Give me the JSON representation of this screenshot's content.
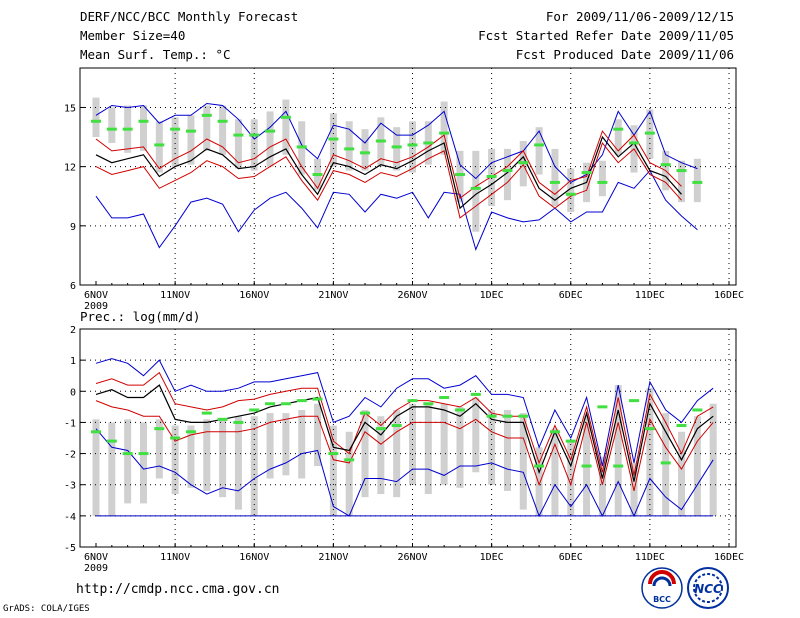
{
  "header": {
    "title": "DERF/NCC/BCC Monthly Forecast",
    "member_size": "Member Size=40",
    "period": "For 2009/11/06-2009/12/15",
    "started": "Fcst Started Refer Date 2009/11/05",
    "produced": "Fcst Produced Date 2009/11/06"
  },
  "footer": {
    "url": "http://cmdp.ncc.cma.gov.cn",
    "grads": "GrADS: COLA/IGES"
  },
  "logos": {
    "bcc": "BCC",
    "ncc": "NCC"
  },
  "colors": {
    "max_min": "#0000d0",
    "quartile": "#d00000",
    "median": "#000000",
    "box": "#d0d0d0",
    "observed": "#40e040",
    "grid": "#000000"
  },
  "chart_data": [
    {
      "type": "line",
      "title": "Mean Surf. Temp.: °C",
      "ylim": [
        6,
        17
      ],
      "yticks": [
        6,
        9,
        12,
        15
      ],
      "xticks": [
        {
          "day": 0,
          "label": "6NOV"
        },
        {
          "day": 5,
          "label": "11NOV"
        },
        {
          "day": 10,
          "label": "16NOV"
        },
        {
          "day": 15,
          "label": "21NOV"
        },
        {
          "day": 20,
          "label": "26NOV"
        },
        {
          "day": 25,
          "label": "1DEC"
        },
        {
          "day": 30,
          "label": "6DEC"
        },
        {
          "day": 35,
          "label": "11DEC"
        },
        {
          "day": 40,
          "label": "16DEC"
        }
      ],
      "year_label": "2009",
      "series": [
        {
          "name": "max",
          "values": [
            14.6,
            15.1,
            15.0,
            15.1,
            14.2,
            14.6,
            14.6,
            15.2,
            15.1,
            14.4,
            13.4,
            14.0,
            14.8,
            13.1,
            12.4,
            14.1,
            13.9,
            13.2,
            14.2,
            13.6,
            13.6,
            14.1,
            14.8,
            12.1,
            11.4,
            12.2,
            12.5,
            12.8,
            13.8,
            12.0,
            11.2,
            11.6,
            12.6,
            14.8,
            13.6,
            14.8,
            12.6,
            12.2,
            11.9
          ]
        },
        {
          "name": "upper_quartile",
          "values": [
            13.4,
            12.8,
            12.9,
            13.0,
            11.9,
            12.4,
            12.8,
            13.4,
            13.0,
            12.2,
            12.4,
            13.0,
            13.4,
            12.0,
            10.9,
            12.6,
            12.3,
            11.9,
            12.4,
            12.2,
            12.5,
            13.0,
            13.6,
            10.4,
            11.0,
            11.5,
            12.0,
            12.8,
            11.2,
            10.6,
            11.3,
            11.5,
            13.8,
            12.8,
            13.6,
            12.2,
            11.8,
            11.0
          ]
        },
        {
          "name": "median",
          "values": [
            12.6,
            12.2,
            12.4,
            12.6,
            11.5,
            12.0,
            12.3,
            12.9,
            12.6,
            11.9,
            12.0,
            12.5,
            12.9,
            11.6,
            10.6,
            12.2,
            12.0,
            11.6,
            12.1,
            11.9,
            12.3,
            12.8,
            13.2,
            9.9,
            10.6,
            11.1,
            11.7,
            12.5,
            10.9,
            10.3,
            10.9,
            11.2,
            13.5,
            12.5,
            13.2,
            11.8,
            11.5,
            10.6
          ]
        },
        {
          "name": "lower_quartile",
          "values": [
            12.0,
            11.6,
            11.8,
            12.0,
            10.9,
            11.3,
            11.7,
            12.3,
            12.0,
            11.4,
            11.5,
            12.0,
            12.5,
            11.3,
            10.3,
            11.8,
            11.6,
            11.2,
            11.7,
            11.5,
            11.9,
            12.4,
            12.8,
            9.4,
            10.0,
            10.6,
            11.2,
            12.1,
            10.5,
            9.9,
            10.5,
            10.8,
            13.2,
            12.2,
            12.9,
            11.6,
            11.2,
            10.3
          ]
        },
        {
          "name": "min",
          "values": [
            10.5,
            9.4,
            9.4,
            9.6,
            7.9,
            9.0,
            10.2,
            10.4,
            10.1,
            8.7,
            9.8,
            10.4,
            10.7,
            9.9,
            8.9,
            10.7,
            10.6,
            9.7,
            10.6,
            10.4,
            10.7,
            9.4,
            10.7,
            10.6,
            7.8,
            9.7,
            9.4,
            9.2,
            9.3,
            9.9,
            9.2,
            9.7,
            9.7,
            11.2,
            10.9,
            11.8,
            10.3,
            9.5,
            8.8
          ]
        },
        {
          "name": "observed",
          "values": [
            14.3,
            13.9,
            13.9,
            14.3,
            13.1,
            13.9,
            13.8,
            14.6,
            14.3,
            13.6,
            13.6,
            13.8,
            14.5,
            13.0,
            11.6,
            13.4,
            12.9,
            12.7,
            13.3,
            13.0,
            13.1,
            13.2,
            13.7,
            11.6,
            10.9,
            11.5,
            11.8,
            12.2,
            13.1,
            11.2,
            10.6,
            11.7,
            11.2,
            13.9,
            13.2,
            13.7,
            12.1,
            11.8,
            11.2
          ]
        },
        {
          "name": "box_top",
          "values": [
            15.5,
            15.0,
            15.1,
            15.1,
            14.3,
            14.5,
            14.6,
            15.1,
            15.1,
            14.4,
            14.4,
            14.8,
            15.4,
            14.3,
            12.4,
            14.7,
            14.3,
            13.9,
            14.5,
            14.0,
            14.3,
            14.3,
            15.3,
            12.8,
            12.8,
            12.9,
            12.9,
            13.3,
            14.0,
            12.9,
            11.9,
            12.2,
            12.3,
            14.4,
            14.1,
            14.9,
            12.8,
            12.3,
            12.4
          ]
        },
        {
          "name": "box_bottom",
          "values": [
            13.5,
            13.2,
            12.7,
            12.8,
            11.7,
            12.0,
            12.1,
            12.8,
            12.6,
            11.9,
            11.8,
            12.0,
            12.6,
            11.6,
            10.8,
            12.0,
            11.8,
            11.8,
            12.0,
            11.8,
            11.7,
            12.1,
            12.6,
            10.2,
            8.7,
            10.0,
            10.3,
            11.0,
            11.6,
            10.0,
            9.7,
            10.2,
            10.5,
            12.6,
            11.7,
            12.4,
            10.8,
            10.2,
            10.2
          ]
        }
      ]
    },
    {
      "type": "line",
      "title": "Prec.: log(mm/d)",
      "ylim": [
        -5,
        2
      ],
      "yticks": [
        -5,
        -4,
        -3,
        -2,
        -1,
        0,
        1,
        2
      ],
      "xticks": [
        {
          "day": 0,
          "label": "6NOV"
        },
        {
          "day": 5,
          "label": "11NOV"
        },
        {
          "day": 10,
          "label": "16NOV"
        },
        {
          "day": 15,
          "label": "21NOV"
        },
        {
          "day": 20,
          "label": "26NOV"
        },
        {
          "day": 25,
          "label": "1DEC"
        },
        {
          "day": 30,
          "label": "6DEC"
        },
        {
          "day": 35,
          "label": "11DEC"
        },
        {
          "day": 40,
          "label": "16DEC"
        }
      ],
      "year_label": "2009",
      "series": [
        {
          "name": "max",
          "values": [
            0.9,
            1.05,
            0.9,
            0.5,
            1.0,
            0.0,
            0.2,
            0.0,
            0.0,
            0.1,
            0.3,
            0.3,
            0.4,
            0.5,
            0.6,
            -1.0,
            -0.8,
            -0.2,
            -0.5,
            0.1,
            0.4,
            0.4,
            0.1,
            0.2,
            0.5,
            -0.1,
            -0.1,
            -0.2,
            -1.8,
            -0.6,
            -1.5,
            -0.2,
            -2.4,
            0.2,
            -2.3,
            0.3,
            -0.6,
            -1.0,
            -0.3,
            0.1
          ]
        },
        {
          "name": "upper_quartile",
          "values": [
            0.25,
            0.4,
            0.2,
            0.2,
            0.6,
            -0.4,
            -0.5,
            -0.6,
            -0.5,
            -0.3,
            -0.25,
            -0.1,
            0.0,
            0.1,
            0.1,
            -1.6,
            -2.0,
            -0.7,
            -1.1,
            -0.6,
            -0.3,
            -0.3,
            -0.4,
            -0.5,
            -0.2,
            -0.7,
            -0.8,
            -0.8,
            -2.3,
            -1.1,
            -2.2,
            -0.5,
            -2.6,
            -0.2,
            -2.7,
            -0.1,
            -1.0,
            -2.0,
            -0.8,
            -0.5
          ]
        },
        {
          "name": "median",
          "values": [
            -0.1,
            0.05,
            -0.2,
            -0.2,
            0.2,
            -0.9,
            -1.0,
            -1.0,
            -0.9,
            -0.8,
            -0.7,
            -0.5,
            -0.4,
            -0.3,
            -0.2,
            -1.8,
            -1.9,
            -1.0,
            -1.4,
            -0.8,
            -0.5,
            -0.5,
            -0.6,
            -0.8,
            -0.4,
            -0.9,
            -1.0,
            -1.0,
            -2.6,
            -1.3,
            -2.4,
            -0.7,
            -2.8,
            -0.6,
            -2.9,
            -0.4,
            -1.3,
            -2.2,
            -1.2,
            -0.8
          ]
        },
        {
          "name": "lower_quartile",
          "values": [
            -0.3,
            -0.5,
            -0.6,
            -0.8,
            -0.8,
            -1.6,
            -1.4,
            -1.3,
            -1.3,
            -1.3,
            -1.2,
            -1.0,
            -0.9,
            -0.8,
            -0.8,
            -2.2,
            -2.3,
            -1.3,
            -1.7,
            -1.3,
            -1.0,
            -1.0,
            -1.0,
            -1.2,
            -0.9,
            -1.3,
            -1.5,
            -1.5,
            -3.0,
            -1.7,
            -3.0,
            -1.0,
            -3.0,
            -1.0,
            -3.2,
            -0.9,
            -1.8,
            -2.5,
            -1.6,
            -1.0
          ]
        },
        {
          "name": "min",
          "values": [
            -1.2,
            -1.8,
            -1.9,
            -2.5,
            -2.4,
            -2.6,
            -3.0,
            -3.3,
            -3.1,
            -3.2,
            -2.8,
            -2.5,
            -2.3,
            -2.0,
            -1.9,
            -3.7,
            -4.0,
            -2.8,
            -2.8,
            -2.9,
            -2.5,
            -2.5,
            -2.7,
            -2.4,
            -2.4,
            -2.3,
            -2.5,
            -2.6,
            -4.0,
            -3.0,
            -3.7,
            -3.0,
            -4.0,
            -2.9,
            -4.0,
            -2.8,
            -3.4,
            -3.8,
            -3.0,
            -2.2
          ]
        },
        {
          "name": "observed",
          "values": [
            -1.3,
            -1.6,
            -2.0,
            -2.0,
            -1.2,
            -1.5,
            -1.3,
            -0.7,
            -0.9,
            -1.0,
            -0.6,
            -0.4,
            -0.4,
            -0.3,
            -0.25,
            -2.0,
            -2.2,
            -0.7,
            -1.2,
            -1.1,
            -0.3,
            -0.4,
            -0.2,
            -0.6,
            -0.1,
            -0.8,
            -0.8,
            -0.8,
            -2.4,
            -1.3,
            -1.6,
            -2.4,
            -0.5,
            -2.4,
            -0.3,
            -1.2,
            -2.3,
            -1.1,
            -0.6
          ]
        },
        {
          "name": "box_top",
          "values": [
            -0.9,
            -1.0,
            -0.9,
            -1.0,
            -0.9,
            -1.1,
            -1.1,
            -0.9,
            -0.9,
            -0.8,
            -0.8,
            -0.7,
            -0.7,
            -0.6,
            -0.4,
            -1.1,
            -1.3,
            -0.6,
            -0.8,
            -0.6,
            -0.4,
            -0.4,
            -0.4,
            -0.5,
            -0.2,
            -0.6,
            -0.6,
            -0.7,
            -1.8,
            -1.2,
            -1.6,
            -0.8,
            -2.1,
            0.2,
            -2.3,
            0.1,
            -0.7,
            -1.3,
            -0.8,
            -0.4
          ]
        },
        {
          "name": "box_bottom",
          "values": [
            -4.0,
            -4.0,
            -3.6,
            -3.6,
            -2.8,
            -3.3,
            -3.1,
            -3.2,
            -3.4,
            -3.8,
            -4.0,
            -2.8,
            -2.7,
            -2.8,
            -2.4,
            -4.0,
            -4.0,
            -3.4,
            -3.3,
            -3.4,
            -3.0,
            -3.3,
            -3.0,
            -3.1,
            -2.6,
            -3.0,
            -3.2,
            -3.8,
            -4.0,
            -4.0,
            -4.0,
            -4.0,
            -4.0,
            -4.0,
            -4.0,
            -4.0,
            -4.0,
            -4.0,
            -4.0,
            -4.0
          ]
        },
        {
          "name": "floor",
          "values": [
            -4,
            -4
          ]
        }
      ]
    }
  ]
}
